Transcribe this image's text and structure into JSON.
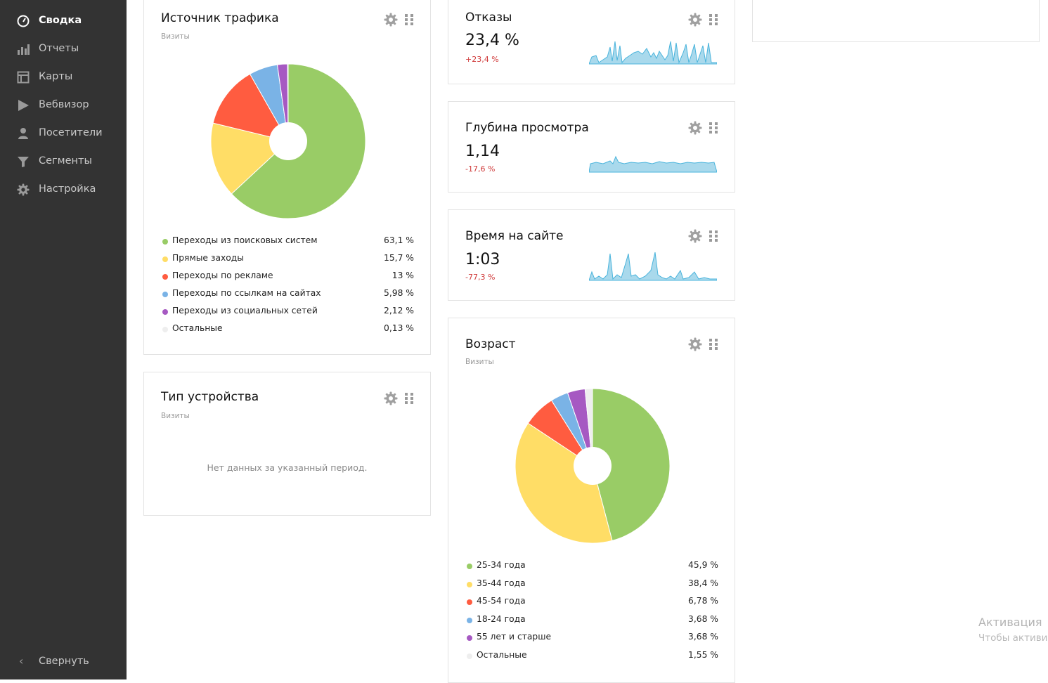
{
  "sidebar": {
    "items": [
      {
        "label": "Сводка",
        "icon": "dashboard-icon",
        "active": true
      },
      {
        "label": "Отчеты",
        "icon": "bar-chart-icon"
      },
      {
        "label": "Карты",
        "icon": "map-icon"
      },
      {
        "label": "Вебвизор",
        "icon": "play-icon"
      },
      {
        "label": "Посетители",
        "icon": "user-icon"
      },
      {
        "label": "Сегменты",
        "icon": "filter-icon"
      },
      {
        "label": "Настройка",
        "icon": "gear-icon"
      }
    ],
    "collapse_label": "Свернуть"
  },
  "colors": {
    "green": "#99cc66",
    "yellow": "#ffdd66",
    "red": "#ff5c40",
    "blue": "#7ab3e6",
    "purple": "#a659c2",
    "grey": "#eeeeee",
    "spark_fill": "#a9d9ec",
    "spark_line": "#4ab4dc",
    "negative": "#d03a3a"
  },
  "traffic_source": {
    "title": "Источник трафика",
    "subtitle": "Визиты",
    "legend": [
      {
        "name": "Переходы из поисковых систем",
        "value": "63,1 %",
        "pct": 63.1,
        "color": "#99cc66"
      },
      {
        "name": "Прямые заходы",
        "value": "15,7 %",
        "pct": 15.7,
        "color": "#ffdd66"
      },
      {
        "name": "Переходы по рекламе",
        "value": "13 %",
        "pct": 13,
        "color": "#ff5c40"
      },
      {
        "name": "Переходы по ссылкам на сайтах",
        "value": "5,98 %",
        "pct": 5.98,
        "color": "#7ab3e6"
      },
      {
        "name": "Переходы из социальных сетей",
        "value": "2,12 %",
        "pct": 2.12,
        "color": "#a659c2"
      },
      {
        "name": "Остальные",
        "value": "0,13 %",
        "pct": 0.13,
        "color": "#eeeeee"
      }
    ]
  },
  "device_type": {
    "title": "Тип устройства",
    "subtitle": "Визиты",
    "empty_message": "Нет данных за указанный период."
  },
  "bounces": {
    "title": "Отказы",
    "value": "23,4 %",
    "delta": "+23,4 %"
  },
  "depth": {
    "title": "Глубина просмотра",
    "value": "1,14",
    "delta": "-17,6 %"
  },
  "time_on_site": {
    "title": "Время на сайте",
    "value": "1:03",
    "delta": "-77,3 %"
  },
  "age": {
    "title": "Возраст",
    "subtitle": "Визиты",
    "legend": [
      {
        "name": "25-34 года",
        "value": "45,9 %",
        "pct": 45.9,
        "color": "#99cc66"
      },
      {
        "name": "35-44 года",
        "value": "38,4 %",
        "pct": 38.4,
        "color": "#ffdd66"
      },
      {
        "name": "45-54 года",
        "value": "6,78 %",
        "pct": 6.78,
        "color": "#ff5c40"
      },
      {
        "name": "18-24 года",
        "value": "3,68 %",
        "pct": 3.68,
        "color": "#7ab3e6"
      },
      {
        "name": "55 лет и старше",
        "value": "3,68 %",
        "pct": 3.68,
        "color": "#a659c2"
      },
      {
        "name": "Остальные",
        "value": "1,55 %",
        "pct": 1.55,
        "color": "#eeeeee"
      }
    ]
  },
  "watermark": {
    "line1": "Активация",
    "line2": "Чтобы активир"
  }
}
